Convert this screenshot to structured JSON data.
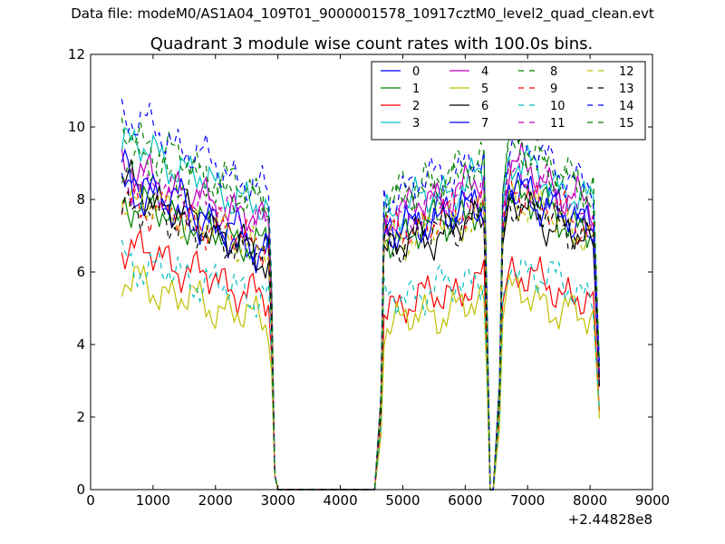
{
  "supertitle": "Data file: modeM0/AS1A04_109T01_9000001578_10917cztM0_level2_quad_clean.evt",
  "chart_data": {
    "type": "line",
    "title": "Quadrant 3 module wise count rates with 100.0s bins.",
    "xlabel": "",
    "ylabel": "",
    "xlim": [
      0,
      9000
    ],
    "ylim": [
      0,
      12
    ],
    "x_offset_label": "+2.44828e8",
    "xticks": [
      0,
      1000,
      2000,
      3000,
      4000,
      5000,
      6000,
      7000,
      8000,
      9000
    ],
    "yticks": [
      0,
      2,
      4,
      6,
      8,
      10,
      12
    ],
    "xtick_labels": [
      "0",
      "1000",
      "2000",
      "3000",
      "4000",
      "5000",
      "6000",
      "7000",
      "8000",
      "9000"
    ],
    "ytick_labels": [
      "0",
      "2",
      "4",
      "6",
      "8",
      "10",
      "12"
    ],
    "legend_position": "top-right",
    "legend_columns": 4,
    "x": [
      500,
      2850,
      2900,
      2950,
      3000,
      4550,
      4650,
      4700,
      6300,
      6350,
      6400,
      6450,
      6550,
      6600,
      6700,
      8150
    ],
    "series": [
      {
        "name": "0",
        "color": "#0000ff",
        "dash": "solid",
        "level": 7.6,
        "low": 6.4,
        "start": 8.4
      },
      {
        "name": "1",
        "color": "#008000",
        "dash": "solid",
        "level": 7.4,
        "low": 6.6,
        "start": 8.0
      },
      {
        "name": "2",
        "color": "#ff0000",
        "dash": "solid",
        "level": 5.4,
        "low": 5.2,
        "start": 6.8
      },
      {
        "name": "3",
        "color": "#00bfbf",
        "dash": "solid",
        "level": 8.2,
        "low": 7.6,
        "start": 9.7
      },
      {
        "name": "4",
        "color": "#bf00bf",
        "dash": "solid",
        "level": 8.1,
        "low": 7.3,
        "start": 8.9
      },
      {
        "name": "5",
        "color": "#bfbf00",
        "dash": "solid",
        "level": 4.9,
        "low": 4.6,
        "start": 5.8
      },
      {
        "name": "6",
        "color": "#000000",
        "dash": "solid",
        "level": 7.1,
        "low": 6.3,
        "start": 8.5
      },
      {
        "name": "7",
        "color": "#0000ff",
        "dash": "solid",
        "level": 7.5,
        "low": 6.6,
        "start": 8.8
      },
      {
        "name": "8",
        "color": "#008000",
        "dash": "dashed",
        "level": 8.6,
        "low": 7.9,
        "start": 9.9
      },
      {
        "name": "9",
        "color": "#ff0000",
        "dash": "dashed",
        "level": 7.5,
        "low": 6.8,
        "start": 8.0
      },
      {
        "name": "10",
        "color": "#00bfbf",
        "dash": "dashed",
        "level": 5.6,
        "low": 5.3,
        "start": 6.3
      },
      {
        "name": "11",
        "color": "#bf00bf",
        "dash": "dashed",
        "level": 7.9,
        "low": 7.3,
        "start": 8.6
      },
      {
        "name": "12",
        "color": "#bfbf00",
        "dash": "dashed",
        "level": 7.3,
        "low": 6.6,
        "start": 8.1
      },
      {
        "name": "13",
        "color": "#000000",
        "dash": "dashed",
        "level": 7.2,
        "low": 6.5,
        "start": 7.9
      },
      {
        "name": "14",
        "color": "#0000ff",
        "dash": "dashed",
        "level": 8.7,
        "low": 8.1,
        "start": 10.4
      },
      {
        "name": "15",
        "color": "#008000",
        "dash": "dashed",
        "level": 8.5,
        "low": 7.9,
        "start": 9.1
      }
    ]
  }
}
